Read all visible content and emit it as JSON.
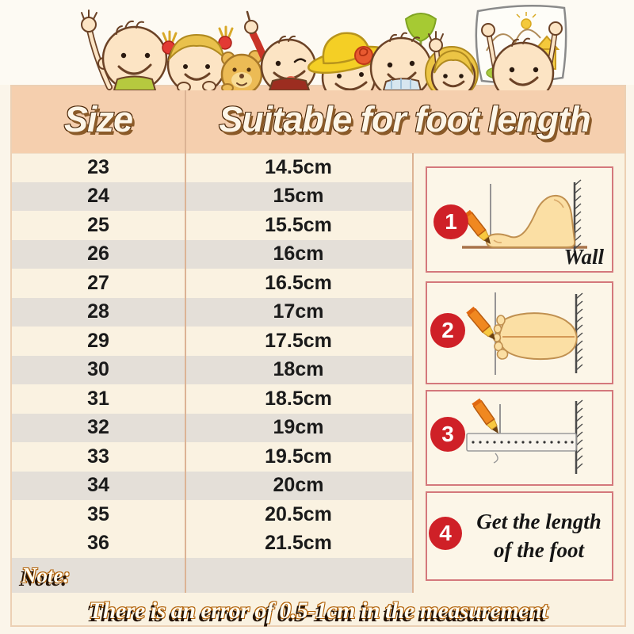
{
  "header": {
    "size_label": "Size",
    "length_label": "Suitable for foot length"
  },
  "table": {
    "rows": [
      {
        "size": "23",
        "length": "14.5cm"
      },
      {
        "size": "24",
        "length": "15cm"
      },
      {
        "size": "25",
        "length": "15.5cm"
      },
      {
        "size": "26",
        "length": "16cm"
      },
      {
        "size": "27",
        "length": "16.5cm"
      },
      {
        "size": "28",
        "length": "17cm"
      },
      {
        "size": "29",
        "length": "17.5cm"
      },
      {
        "size": "30",
        "length": "18cm"
      },
      {
        "size": "31",
        "length": "18.5cm"
      },
      {
        "size": "32",
        "length": "19cm"
      },
      {
        "size": "33",
        "length": "19.5cm"
      },
      {
        "size": "34",
        "length": "20cm"
      },
      {
        "size": "35",
        "length": "20.5cm"
      },
      {
        "size": "36",
        "length": "21.5cm"
      }
    ]
  },
  "note": {
    "label": "Note:",
    "text": "There is an error of 0.5-1cm in the measurement"
  },
  "measure_guide": {
    "steps": [
      {
        "num": "1",
        "caption": "Wall",
        "illustration": "foot-side-view-against-wall"
      },
      {
        "num": "2",
        "caption": "",
        "illustration": "foot-top-view-against-wall"
      },
      {
        "num": "3",
        "caption": "",
        "illustration": "ruler-measuring-mark"
      },
      {
        "num": "4",
        "caption": "Get the length of the foot",
        "illustration": "caption-only"
      }
    ]
  },
  "banner": {
    "illustration": "cartoon-children-peeking-over-banner"
  },
  "colors": {
    "header_band": "#f5cfae",
    "row_alt_gray": "#e4dfd8",
    "sheet_cream": "#faf2e1",
    "accent_red": "#cf2027",
    "step_box_border": "#d4787c",
    "outline_brown": "#4a2708",
    "note_outline_orange": "#b2620a",
    "pencil_orange": "#f08820"
  }
}
